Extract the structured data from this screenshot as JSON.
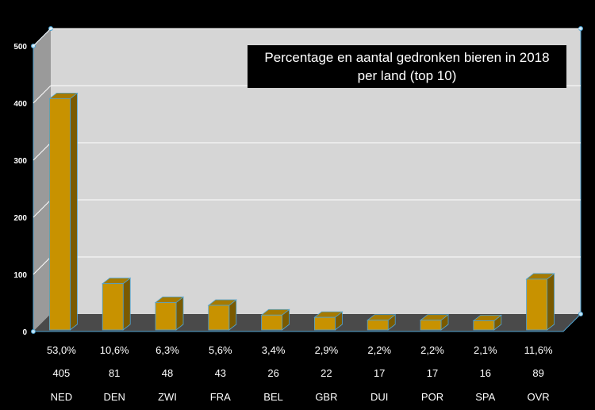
{
  "chart_data": {
    "type": "bar",
    "title_line1": "Percentage en aantal gedronken bieren in 2018",
    "title_line2": "per land (top 10)",
    "categories": [
      "NED",
      "DEN",
      "ZWI",
      "FRA",
      "BEL",
      "GBR",
      "DUI",
      "POR",
      "SPA",
      "OVR"
    ],
    "values": [
      405,
      81,
      48,
      43,
      26,
      22,
      17,
      17,
      16,
      89
    ],
    "percentages": [
      "53,0%",
      "10,6%",
      "6,3%",
      "5,6%",
      "3,4%",
      "2,9%",
      "2,2%",
      "2,2%",
      "2,1%",
      "11,6%"
    ],
    "counts": [
      "405",
      "81",
      "48",
      "43",
      "26",
      "22",
      "17",
      "17",
      "16",
      "89"
    ],
    "ylim": [
      0,
      500
    ],
    "yticks": [
      "0",
      "100",
      "200",
      "300",
      "400",
      "500"
    ],
    "grid": true,
    "colors": {
      "bar_front": "#C89200",
      "bar_top": "#A67A00",
      "bar_side": "#7A5A00",
      "bar_edge": "#4FA3D1",
      "wall": "#D6D6D6",
      "side_wall": "#9A9A9A",
      "floor": "#4A4A4A"
    }
  }
}
